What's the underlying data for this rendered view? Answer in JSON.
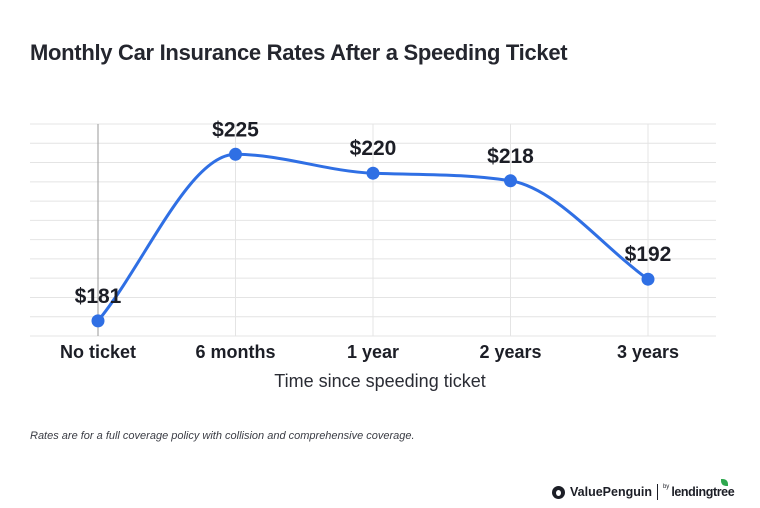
{
  "title": "Monthly Car Insurance Rates After a Speeding Ticket",
  "footnote": "Rates are for a full coverage policy with collision and comprehensive coverage.",
  "brand": {
    "valuepenguin": "ValuePenguin",
    "by": "by",
    "lendingtree": "lendingtree",
    "valuepenguin_icon": "penguin-icon",
    "lendingtree_icon": "leaf-icon"
  },
  "chart_data": {
    "type": "line",
    "title": "Monthly Car Insurance Rates After a Speeding Ticket",
    "xlabel": "Time since speeding ticket",
    "ylabel": "",
    "categories": [
      "No ticket",
      "6 months",
      "1 year",
      "2 years",
      "3 years"
    ],
    "values": [
      181,
      225,
      220,
      218,
      192
    ],
    "data_labels": [
      "$181",
      "$225",
      "$220",
      "$218",
      "$192"
    ],
    "ylim": [
      177,
      233
    ],
    "grid": true,
    "legend": "none",
    "colors": {
      "line": "#2f6fe4",
      "marker": "#2f6fe4",
      "grid": "#e4e4e4",
      "first_vline": "#9a9a9a"
    }
  }
}
